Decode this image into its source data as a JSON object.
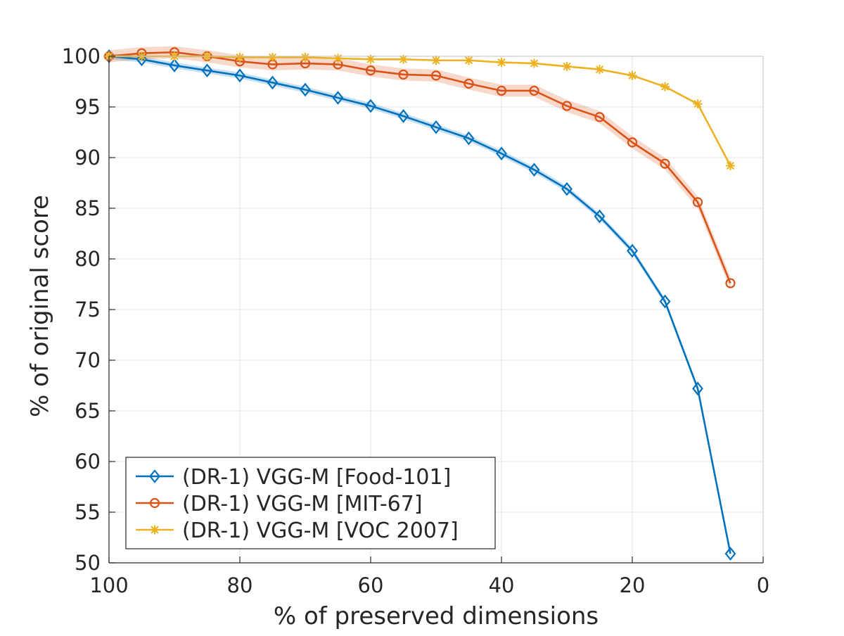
{
  "chart_data": {
    "type": "line",
    "title": "",
    "xlabel": "% of preserved dimensions",
    "ylabel": "% of original score",
    "xlim": [
      100,
      0
    ],
    "ylim": [
      50,
      100
    ],
    "x_reversed": true,
    "grid": true,
    "legend_position": "bottom-left",
    "xticks": [
      100,
      80,
      60,
      40,
      20,
      0
    ],
    "yticks": [
      100,
      95,
      90,
      85,
      80,
      75,
      70,
      65,
      60,
      55,
      50
    ],
    "x": [
      100,
      95,
      90,
      85,
      80,
      75,
      70,
      65,
      60,
      55,
      50,
      45,
      40,
      35,
      30,
      25,
      20,
      15,
      10,
      5
    ],
    "series": [
      {
        "name": "(DR-1) VGG-M [Food-101]",
        "color": "#0072BD",
        "marker": "diamond",
        "band": 0.3,
        "values": [
          100.0,
          99.7,
          99.1,
          98.6,
          98.1,
          97.4,
          96.7,
          95.9,
          95.1,
          94.1,
          93.0,
          91.9,
          90.4,
          88.8,
          86.9,
          84.2,
          80.8,
          75.8,
          67.2,
          50.9
        ]
      },
      {
        "name": "(DR-1) VGG-M [MIT-67]",
        "color": "#D95319",
        "marker": "circle",
        "band": 0.6,
        "values": [
          100.0,
          100.3,
          100.4,
          100.0,
          99.5,
          99.2,
          99.3,
          99.2,
          98.6,
          98.2,
          98.1,
          97.3,
          96.6,
          96.6,
          95.1,
          94.0,
          91.5,
          89.4,
          85.6,
          77.6
        ]
      },
      {
        "name": "(DR-1) VGG-M [VOC 2007]",
        "color": "#EDB120",
        "marker": "asterisk",
        "band": 0.0,
        "values": [
          100.0,
          100.0,
          100.0,
          100.0,
          99.9,
          99.9,
          99.9,
          99.8,
          99.7,
          99.7,
          99.6,
          99.6,
          99.4,
          99.3,
          99.0,
          98.7,
          98.1,
          97.0,
          95.3,
          89.2
        ]
      }
    ]
  }
}
